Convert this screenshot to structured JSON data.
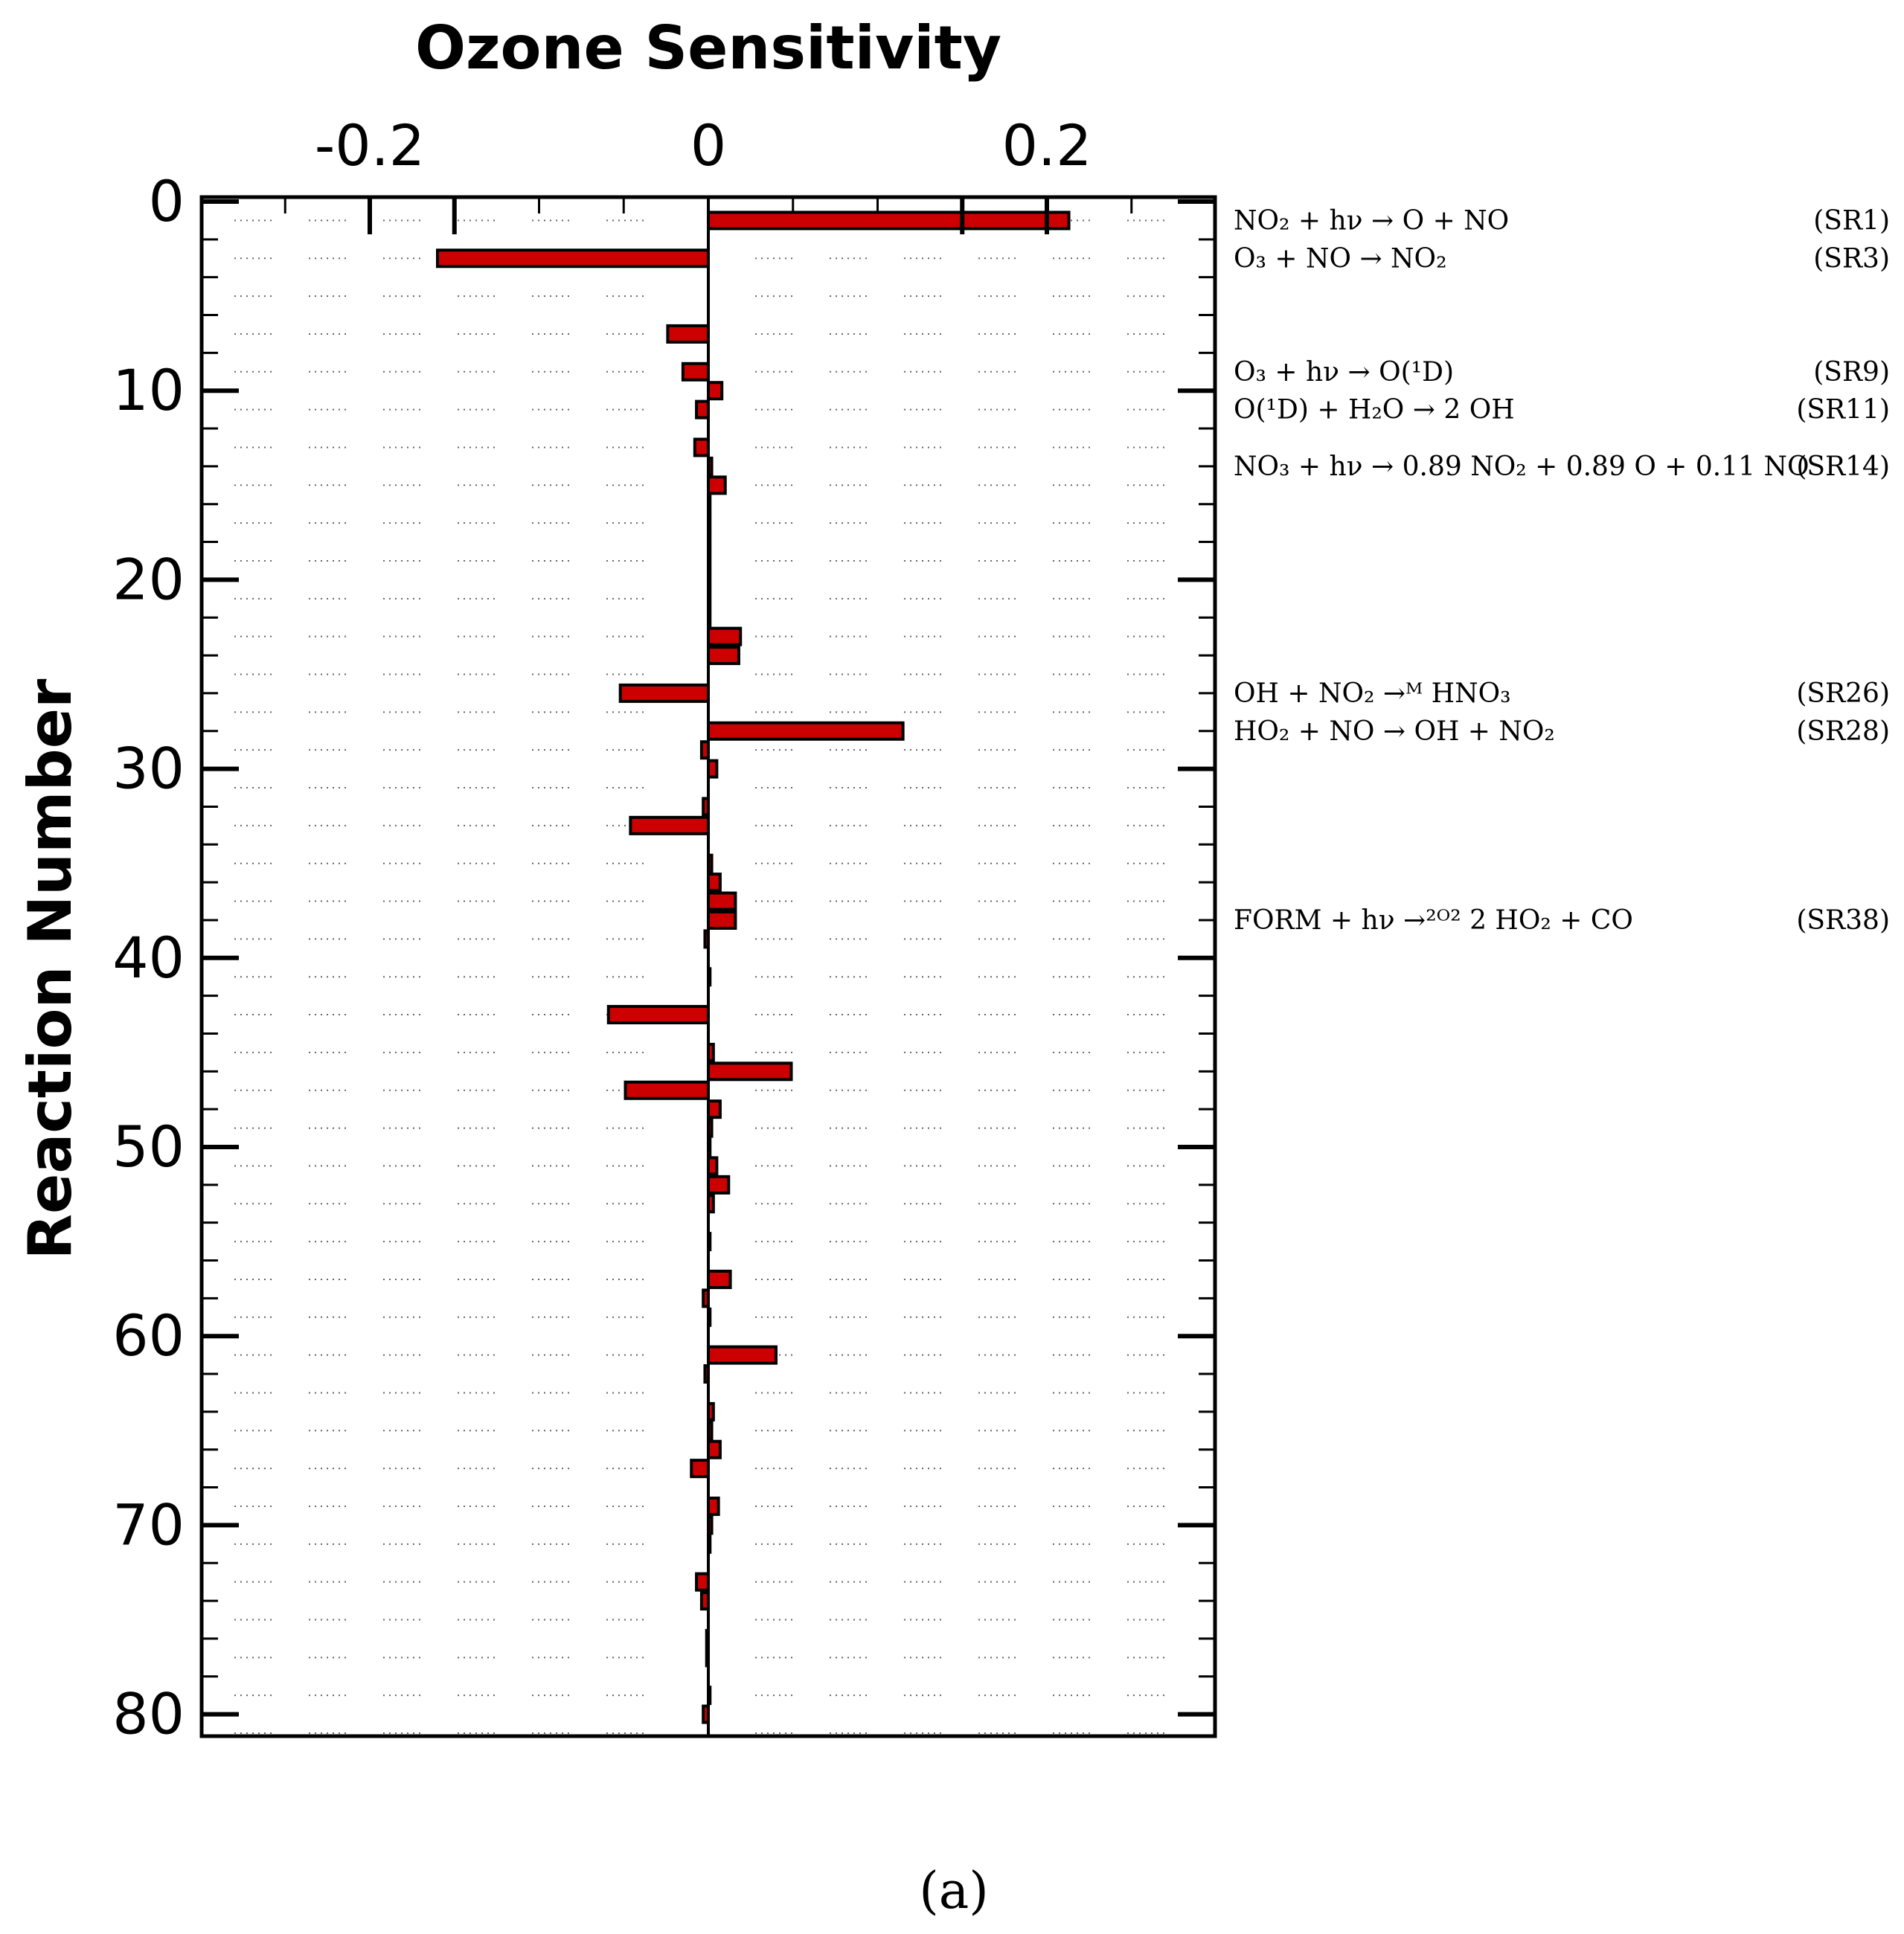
{
  "chart_data": {
    "type": "bar",
    "orientation": "horizontal",
    "title": "Ozone Sensitivity",
    "xlabel": "Ozone Sensitivity",
    "ylabel": "Reaction Number",
    "xlim": [
      -0.3,
      0.3
    ],
    "ylim": [
      0,
      80
    ],
    "x_ticks": [
      -0.2,
      0,
      0.2
    ],
    "x_tick_labels": [
      "-0.2",
      "0",
      "0.2"
    ],
    "y_ticks": [
      0,
      10,
      20,
      30,
      40,
      50,
      60,
      70,
      80
    ],
    "y_tick_labels": [
      "0",
      "10",
      "20",
      "30",
      "40",
      "50",
      "60",
      "70",
      "80"
    ],
    "grid": "dotted vertical",
    "bar_color": "#cc0000",
    "bar_edge_color": "#000000",
    "series": [
      {
        "name": "Ozone Sensitivity",
        "reactions": [
          1,
          3,
          7,
          9,
          10,
          11,
          13,
          14,
          15,
          16,
          17,
          18,
          19,
          20,
          21,
          22,
          23,
          24,
          26,
          28,
          29,
          30,
          32,
          33,
          35,
          36,
          37,
          38,
          39,
          41,
          43,
          45,
          46,
          47,
          48,
          49,
          50,
          51,
          52,
          53,
          55,
          57,
          58,
          59,
          61,
          62,
          64,
          65,
          66,
          67,
          69,
          70,
          71,
          73,
          74,
          76,
          77,
          79,
          80
        ],
        "values": [
          0.213,
          -0.16,
          -0.024,
          -0.015,
          0.008,
          -0.007,
          -0.008,
          0.002,
          0.01,
          0.001,
          0.001,
          0.001,
          0.001,
          0.001,
          0.001,
          0.001,
          0.019,
          0.018,
          -0.052,
          0.115,
          -0.004,
          0.005,
          -0.003,
          -0.046,
          0.002,
          0.007,
          0.016,
          0.016,
          -0.002,
          0.001,
          -0.059,
          0.003,
          0.049,
          -0.049,
          0.007,
          0.002,
          0.001,
          0.005,
          0.012,
          0.003,
          0.001,
          0.013,
          -0.003,
          0.001,
          0.04,
          -0.002,
          0.003,
          0.002,
          0.007,
          -0.01,
          0.006,
          0.002,
          0.001,
          -0.007,
          -0.004,
          -0.001,
          -0.001,
          0.001,
          -0.003
        ]
      }
    ],
    "annotations": [
      {
        "reaction": 1,
        "equation": "NO₂ + hν → O + NO",
        "label": "(SR1)"
      },
      {
        "reaction": 3,
        "equation": "O₃ + NO → NO₂",
        "label": "(SR3)"
      },
      {
        "reaction": 9,
        "equation": "O₃ + hν → O(¹D)",
        "label": "(SR9)"
      },
      {
        "reaction": 11,
        "equation": "O(¹D) + H₂O → 2 OH",
        "label": "(SR11)"
      },
      {
        "reaction": 14,
        "equation": "NO₃ + hν → 0.89 NO₂ + 0.89 O + 0.11 NO",
        "label": "(SR14)"
      },
      {
        "reaction": 26,
        "equation": "OH + NO₂ →ᴹ HNO₃",
        "label": "(SR26)"
      },
      {
        "reaction": 28,
        "equation": "HO₂ + NO → OH + NO₂",
        "label": "(SR28)"
      },
      {
        "reaction": 38,
        "equation": "FORM + hν →²ᴼ² 2 HO₂ + CO",
        "label": "(SR38)"
      }
    ]
  },
  "caption": "(a)"
}
